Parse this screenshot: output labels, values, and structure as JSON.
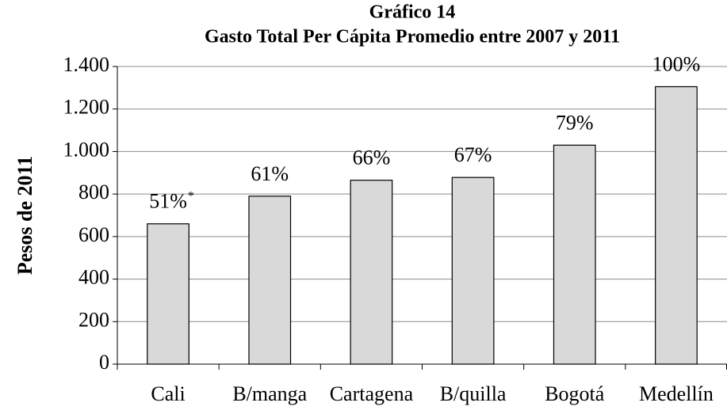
{
  "chart_data": {
    "type": "bar",
    "title": "Gráfico 14",
    "subtitle": "Gasto Total Per Cápita Promedio entre 2007 y 2011",
    "y_label": "Pesos de 2011",
    "categories": [
      "Cali",
      "B/manga",
      "Cartagena",
      "B/quilla",
      "Bogotá",
      "Medellín"
    ],
    "values": [
      660,
      790,
      865,
      878,
      1030,
      1305
    ],
    "bar_labels": [
      "51%",
      "61%",
      "66%",
      "67%",
      "79%",
      "100%"
    ],
    "bar_label_note": "*",
    "color": "#d9d9d9",
    "ylim": [
      0,
      1400
    ],
    "yticks": [
      0,
      200,
      400,
      600,
      800,
      {
        "value": 1000,
        "label": "1.000"
      },
      {
        "value": 1200,
        "label": "1.200"
      },
      {
        "value": 1400,
        "label": "1.400"
      }
    ],
    "grid": true
  }
}
